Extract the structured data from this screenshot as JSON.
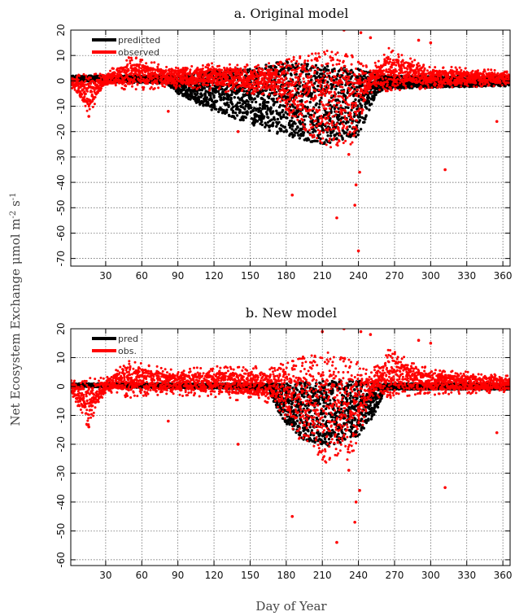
{
  "figure": {
    "ylabel_text": "Net Ecosystem Exchange μmol m",
    "ylabel_sup1": "-2",
    "ylabel_mid": " s",
    "ylabel_sup2": "-1",
    "xlabel": "Day of Year"
  },
  "colors": {
    "predicted": "#000000",
    "observed": "#ff0000",
    "grid": "#555555"
  },
  "chart_data": [
    {
      "type": "scatter",
      "title": "a. Original model",
      "xlim": [
        1,
        366
      ],
      "ylim": [
        -73,
        20
      ],
      "xticks": [
        30,
        60,
        90,
        120,
        150,
        180,
        210,
        240,
        270,
        300,
        330,
        360
      ],
      "yticks": [
        20,
        10,
        0,
        -10,
        -20,
        -30,
        -40,
        -50,
        -60,
        -70
      ],
      "grid": true,
      "legend_position": "top-left",
      "series": [
        {
          "name": "predicted",
          "color": "#000000",
          "envelope": [
            {
              "x": 1,
              "low": 0,
              "high": 2
            },
            {
              "x": 80,
              "low": -1,
              "high": 2
            },
            {
              "x": 90,
              "low": -5,
              "high": 2
            },
            {
              "x": 120,
              "low": -12,
              "high": 4
            },
            {
              "x": 150,
              "low": -17,
              "high": 5
            },
            {
              "x": 180,
              "low": -22,
              "high": 8
            },
            {
              "x": 210,
              "low": -25,
              "high": 6
            },
            {
              "x": 240,
              "low": -22,
              "high": 5
            },
            {
              "x": 255,
              "low": -5,
              "high": 3
            },
            {
              "x": 262,
              "low": -3,
              "high": 2
            },
            {
              "x": 366,
              "low": -2,
              "high": 2
            }
          ]
        },
        {
          "name": "observed",
          "color": "#ff0000",
          "envelope": [
            {
              "x": 1,
              "low": -2,
              "high": 2
            },
            {
              "x": 15,
              "low": -14,
              "high": 3
            },
            {
              "x": 30,
              "low": -2,
              "high": 3
            },
            {
              "x": 50,
              "low": -4,
              "high": 10
            },
            {
              "x": 80,
              "low": -3,
              "high": 6
            },
            {
              "x": 120,
              "low": -4,
              "high": 7
            },
            {
              "x": 170,
              "low": -6,
              "high": 7
            },
            {
              "x": 190,
              "low": -18,
              "high": 10
            },
            {
              "x": 215,
              "low": -27,
              "high": 12
            },
            {
              "x": 235,
              "low": -25,
              "high": 10
            },
            {
              "x": 250,
              "low": -5,
              "high": 5
            },
            {
              "x": 265,
              "low": -4,
              "high": 13
            },
            {
              "x": 300,
              "low": -3,
              "high": 6
            },
            {
              "x": 366,
              "low": -2,
              "high": 4
            }
          ],
          "outliers": [
            [
              185,
              -45
            ],
            [
              222,
              -54
            ],
            [
              237,
              -49
            ],
            [
              238,
              -41
            ],
            [
              240,
              -67
            ],
            [
              241,
              -36
            ],
            [
              232,
              -29
            ],
            [
              312,
              -35
            ],
            [
              355,
              -16
            ],
            [
              16,
              -14
            ],
            [
              242,
              19
            ],
            [
              228,
              20
            ],
            [
              250,
              17
            ],
            [
              290,
              16
            ],
            [
              300,
              15
            ],
            [
              82,
              -12
            ],
            [
              140,
              -20
            ]
          ]
        }
      ]
    },
    {
      "type": "scatter",
      "title": "b. New model",
      "xlim": [
        1,
        366
      ],
      "ylim": [
        -62,
        20
      ],
      "xticks": [
        30,
        60,
        90,
        120,
        150,
        180,
        210,
        240,
        270,
        300,
        330,
        360
      ],
      "yticks": [
        20,
        10,
        0,
        -10,
        -20,
        -30,
        -40,
        -50,
        -60
      ],
      "grid": true,
      "legend_position": "top-left",
      "series": [
        {
          "name": "pred",
          "color": "#000000",
          "envelope": [
            {
              "x": 1,
              "low": 0,
              "high": 1
            },
            {
              "x": 165,
              "low": -1,
              "high": 1
            },
            {
              "x": 175,
              "low": -10,
              "high": 1
            },
            {
              "x": 190,
              "low": -18,
              "high": 2
            },
            {
              "x": 215,
              "low": -21,
              "high": 2
            },
            {
              "x": 240,
              "low": -17,
              "high": 2
            },
            {
              "x": 255,
              "low": -9,
              "high": 1
            },
            {
              "x": 262,
              "low": -1,
              "high": 1
            },
            {
              "x": 366,
              "low": -1,
              "high": 1
            }
          ]
        },
        {
          "name": "obs.",
          "color": "#ff0000",
          "envelope": [
            {
              "x": 1,
              "low": -2,
              "high": 2
            },
            {
              "x": 15,
              "low": -14,
              "high": 3
            },
            {
              "x": 30,
              "low": -2,
              "high": 3
            },
            {
              "x": 50,
              "low": -4,
              "high": 10
            },
            {
              "x": 80,
              "low": -3,
              "high": 6
            },
            {
              "x": 120,
              "low": -4,
              "high": 7
            },
            {
              "x": 170,
              "low": -6,
              "high": 7
            },
            {
              "x": 190,
              "low": -18,
              "high": 10
            },
            {
              "x": 215,
              "low": -27,
              "high": 12
            },
            {
              "x": 235,
              "low": -25,
              "high": 10
            },
            {
              "x": 250,
              "low": -5,
              "high": 5
            },
            {
              "x": 265,
              "low": -4,
              "high": 13
            },
            {
              "x": 300,
              "low": -3,
              "high": 6
            },
            {
              "x": 366,
              "low": -2,
              "high": 4
            }
          ],
          "outliers": [
            [
              185,
              -45
            ],
            [
              222,
              -54
            ],
            [
              237,
              -47
            ],
            [
              238,
              -40
            ],
            [
              241,
              -36
            ],
            [
              232,
              -29
            ],
            [
              312,
              -35
            ],
            [
              355,
              -16
            ],
            [
              16,
              -14
            ],
            [
              242,
              19
            ],
            [
              228,
              20
            ],
            [
              250,
              18
            ],
            [
              290,
              16
            ],
            [
              300,
              15
            ],
            [
              82,
              -12
            ],
            [
              140,
              -20
            ],
            [
              210,
              19
            ]
          ]
        }
      ]
    }
  ]
}
